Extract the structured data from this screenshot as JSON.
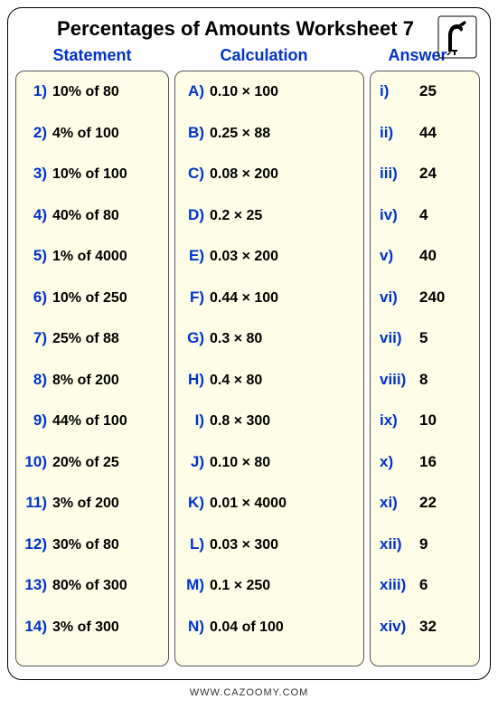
{
  "title": "Percentages of Amounts Worksheet 7",
  "headers": {
    "statement": "Statement",
    "calculation": "Calculation",
    "answer": "Answer"
  },
  "statements": [
    {
      "n": "1)",
      "v": "10% of 80"
    },
    {
      "n": "2)",
      "v": "4% of 100"
    },
    {
      "n": "3)",
      "v": "10% of 100"
    },
    {
      "n": "4)",
      "v": "40% of 80"
    },
    {
      "n": "5)",
      "v": "1% of 4000"
    },
    {
      "n": "6)",
      "v": "10% of 250"
    },
    {
      "n": "7)",
      "v": "25% of 88"
    },
    {
      "n": "8)",
      "v": "8% of 200"
    },
    {
      "n": "9)",
      "v": "44% of 100"
    },
    {
      "n": "10)",
      "v": "20% of 25"
    },
    {
      "n": "11)",
      "v": "3% of 200"
    },
    {
      "n": "12)",
      "v": "30% of 80"
    },
    {
      "n": "13)",
      "v": "80% of 300"
    },
    {
      "n": "14)",
      "v": "3% of 300"
    }
  ],
  "calculations": [
    {
      "n": "A)",
      "v": "0.10 × 100"
    },
    {
      "n": "B)",
      "v": "0.25 × 88"
    },
    {
      "n": "C)",
      "v": "0.08 × 200"
    },
    {
      "n": "D)",
      "v": "0.2 × 25"
    },
    {
      "n": "E)",
      "v": "0.03 × 200"
    },
    {
      "n": "F)",
      "v": "0.44 × 100"
    },
    {
      "n": "G)",
      "v": "0.3 × 80"
    },
    {
      "n": "H)",
      "v": "0.4 × 80"
    },
    {
      "n": "I)",
      "v": "0.8 × 300"
    },
    {
      "n": "J)",
      "v": "0.10 × 80"
    },
    {
      "n": "K)",
      "v": "0.01 × 4000"
    },
    {
      "n": "L)",
      "v": "0.03 × 300"
    },
    {
      "n": "M)",
      "v": "0.1 × 250"
    },
    {
      "n": "N)",
      "v": "0.04 of 100"
    }
  ],
  "answers": [
    {
      "n": "i)",
      "v": "25"
    },
    {
      "n": "ii)",
      "v": "44"
    },
    {
      "n": "iii)",
      "v": "24"
    },
    {
      "n": "iv)",
      "v": "4"
    },
    {
      "n": "v)",
      "v": "40"
    },
    {
      "n": "vi)",
      "v": "240"
    },
    {
      "n": "vii)",
      "v": "5"
    },
    {
      "n": "viii)",
      "v": "8"
    },
    {
      "n": "ix)",
      "v": "10"
    },
    {
      "n": "x)",
      "v": "16"
    },
    {
      "n": "xi)",
      "v": "22"
    },
    {
      "n": "xii)",
      "v": "9"
    },
    {
      "n": "xiii)",
      "v": "6"
    },
    {
      "n": "xiv)",
      "v": "32"
    }
  ],
  "footer": "WWW.CAZOOMY.COM",
  "colors": {
    "blue": "#0033cc",
    "panel_bg": "#fdfde8",
    "border": "#555555"
  }
}
